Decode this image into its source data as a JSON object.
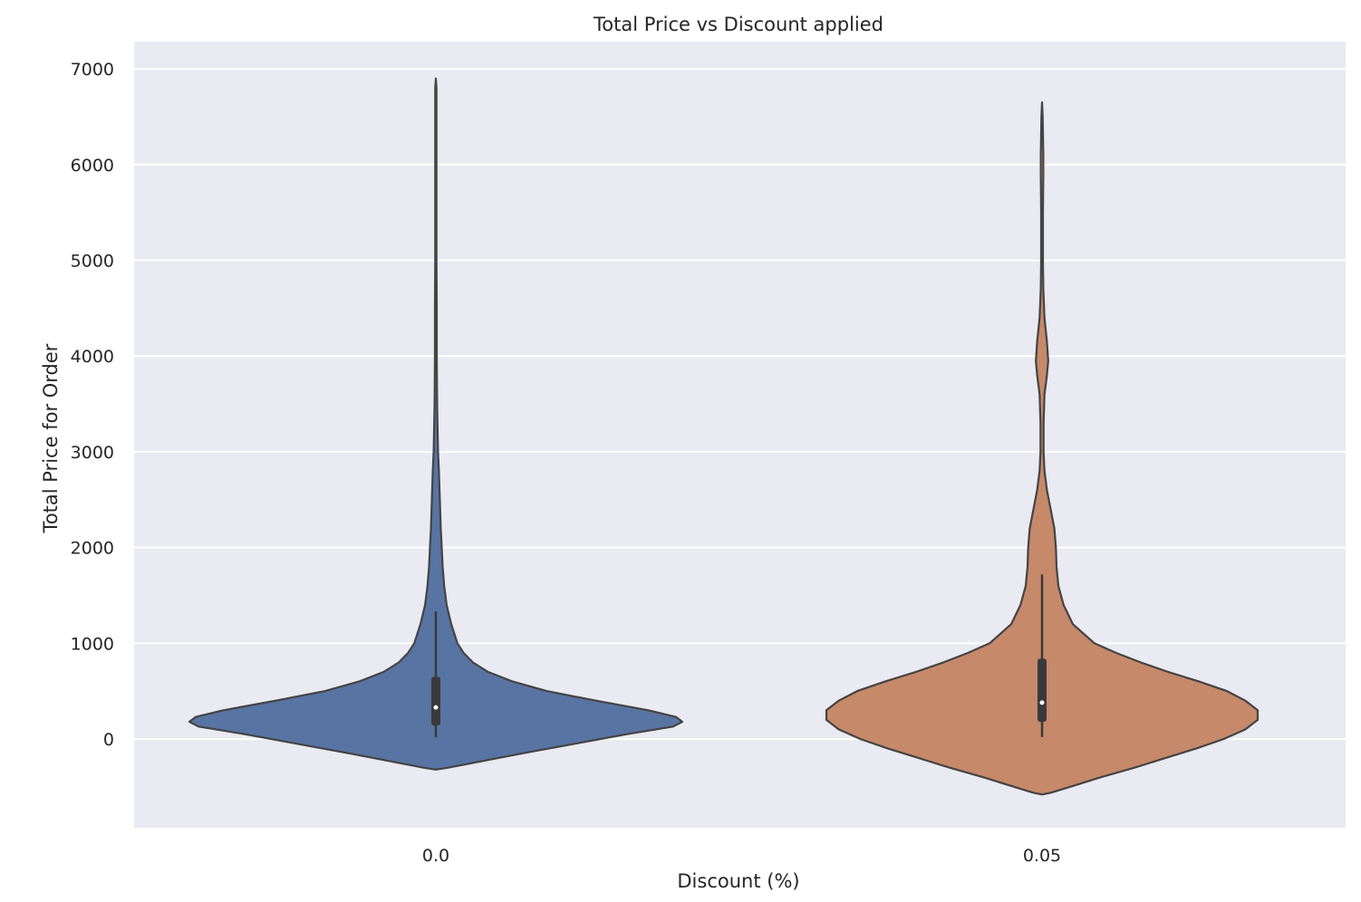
{
  "chart_data": {
    "type": "violin",
    "title": "Total Price vs Discount applied",
    "xlabel": "Discount (%)",
    "ylabel": "Total Price for Order",
    "categories": [
      "0.0",
      "0.05"
    ],
    "ylim": [
      -930,
      7300
    ],
    "yticks": [
      0,
      1000,
      2000,
      3000,
      4000,
      5000,
      6000,
      7000
    ],
    "grid": true,
    "colors": [
      "#5874a3",
      "#c6896a"
    ],
    "background": "#eaeaf2",
    "series": [
      {
        "category": "0.0",
        "color": "#5874a3",
        "profile": [
          [
            -320,
            0.0
          ],
          [
            -300,
            0.04
          ],
          [
            -250,
            0.12
          ],
          [
            -150,
            0.28
          ],
          [
            -50,
            0.45
          ],
          [
            50,
            0.62
          ],
          [
            130,
            0.77
          ],
          [
            180,
            0.8
          ],
          [
            230,
            0.78
          ],
          [
            300,
            0.69
          ],
          [
            400,
            0.52
          ],
          [
            500,
            0.36
          ],
          [
            600,
            0.25
          ],
          [
            700,
            0.17
          ],
          [
            800,
            0.12
          ],
          [
            900,
            0.09
          ],
          [
            1000,
            0.07
          ],
          [
            1200,
            0.05
          ],
          [
            1400,
            0.035
          ],
          [
            1600,
            0.027
          ],
          [
            1800,
            0.022
          ],
          [
            2000,
            0.019
          ],
          [
            2200,
            0.016
          ],
          [
            2500,
            0.013
          ],
          [
            2800,
            0.01
          ],
          [
            3000,
            0.007
          ],
          [
            3500,
            0.004
          ],
          [
            4000,
            0.003
          ],
          [
            4500,
            0.003
          ],
          [
            5000,
            0.002
          ],
          [
            6000,
            0.002
          ],
          [
            6800,
            0.002
          ],
          [
            6900,
            0.0
          ]
        ],
        "whisker": [
          20,
          1330
        ],
        "box": [
          140,
          650
        ],
        "median": 330
      },
      {
        "category": "0.05",
        "color": "#c6896a",
        "profile": [
          [
            -580,
            0.0
          ],
          [
            -560,
            0.03
          ],
          [
            -500,
            0.09
          ],
          [
            -400,
            0.19
          ],
          [
            -300,
            0.3
          ],
          [
            -200,
            0.4
          ],
          [
            -100,
            0.5
          ],
          [
            0,
            0.59
          ],
          [
            100,
            0.66
          ],
          [
            200,
            0.7
          ],
          [
            300,
            0.7
          ],
          [
            400,
            0.66
          ],
          [
            500,
            0.6
          ],
          [
            600,
            0.51
          ],
          [
            700,
            0.41
          ],
          [
            800,
            0.32
          ],
          [
            900,
            0.24
          ],
          [
            1000,
            0.17
          ],
          [
            1200,
            0.1
          ],
          [
            1400,
            0.07
          ],
          [
            1600,
            0.053
          ],
          [
            1800,
            0.047
          ],
          [
            2000,
            0.045
          ],
          [
            2200,
            0.04
          ],
          [
            2400,
            0.028
          ],
          [
            2600,
            0.016
          ],
          [
            2800,
            0.008
          ],
          [
            3000,
            0.005
          ],
          [
            3300,
            0.005
          ],
          [
            3600,
            0.008
          ],
          [
            3800,
            0.016
          ],
          [
            3950,
            0.02
          ],
          [
            4150,
            0.016
          ],
          [
            4400,
            0.008
          ],
          [
            4700,
            0.004
          ],
          [
            5000,
            0.003
          ],
          [
            5500,
            0.003
          ],
          [
            5900,
            0.004
          ],
          [
            6100,
            0.004
          ],
          [
            6500,
            0.002
          ],
          [
            6650,
            0.0
          ]
        ],
        "whisker": [
          20,
          1720
        ],
        "box": [
          180,
          840
        ],
        "median": 380
      }
    ]
  }
}
